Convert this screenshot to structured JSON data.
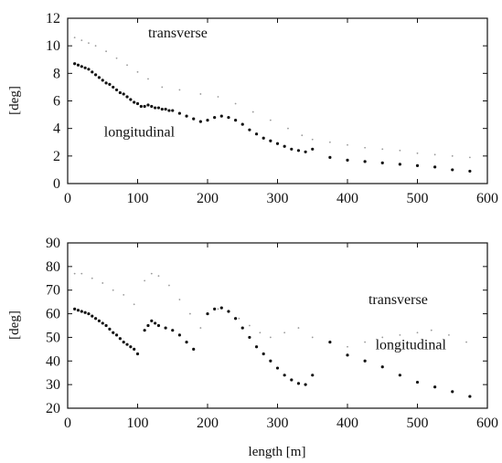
{
  "chart_data": [
    {
      "type": "scatter",
      "xlim": [
        0,
        600
      ],
      "ylim": [
        0,
        12
      ],
      "xticks": [
        0,
        100,
        200,
        300,
        400,
        500,
        600
      ],
      "yticks": [
        0,
        2,
        4,
        6,
        8,
        10,
        12
      ],
      "xlabel": "",
      "ylabel": "[deg]",
      "grid": false,
      "annotations": [
        {
          "text": "transverse",
          "x": 115,
          "y": 10.6
        },
        {
          "text": "longitudinal",
          "x": 52,
          "y": 3.4
        }
      ],
      "series": [
        {
          "name": "transverse",
          "marker": "faint",
          "x": [
            10,
            20,
            30,
            40,
            55,
            70,
            85,
            100,
            115,
            135,
            160,
            190,
            215,
            240,
            265,
            290,
            315,
            335,
            350,
            375,
            400,
            425,
            450,
            475,
            500,
            525,
            550,
            575
          ],
          "y": [
            10.6,
            10.4,
            10.2,
            10.0,
            9.6,
            9.1,
            8.6,
            8.1,
            7.6,
            7.0,
            6.8,
            6.5,
            6.3,
            5.8,
            5.2,
            4.6,
            4.0,
            3.5,
            3.2,
            3.0,
            2.8,
            2.6,
            2.5,
            2.4,
            2.2,
            2.1,
            2.0,
            1.9
          ]
        },
        {
          "name": "longitudinal",
          "marker": "dot",
          "x": [
            10,
            15,
            20,
            25,
            30,
            35,
            40,
            45,
            50,
            55,
            60,
            65,
            70,
            75,
            80,
            85,
            90,
            95,
            100,
            105,
            110,
            115,
            120,
            125,
            130,
            135,
            140,
            145,
            150,
            160,
            170,
            180,
            190,
            200,
            210,
            220,
            230,
            240,
            250,
            260,
            270,
            280,
            290,
            300,
            310,
            320,
            330,
            340,
            350,
            375,
            400,
            425,
            450,
            475,
            500,
            525,
            550,
            575
          ],
          "y": [
            8.7,
            8.6,
            8.5,
            8.4,
            8.3,
            8.1,
            7.9,
            7.7,
            7.5,
            7.3,
            7.2,
            7.0,
            6.8,
            6.6,
            6.5,
            6.3,
            6.1,
            5.9,
            5.8,
            5.6,
            5.6,
            5.7,
            5.6,
            5.5,
            5.5,
            5.4,
            5.4,
            5.3,
            5.3,
            5.1,
            4.9,
            4.7,
            4.5,
            4.6,
            4.8,
            4.9,
            4.8,
            4.6,
            4.3,
            3.9,
            3.6,
            3.3,
            3.1,
            2.9,
            2.7,
            2.5,
            2.4,
            2.3,
            2.5,
            1.9,
            1.7,
            1.6,
            1.5,
            1.4,
            1.3,
            1.2,
            1.0,
            0.9
          ]
        }
      ]
    },
    {
      "type": "scatter",
      "xlim": [
        0,
        600
      ],
      "ylim": [
        20,
        90
      ],
      "xticks": [
        0,
        100,
        200,
        300,
        400,
        500,
        600
      ],
      "yticks": [
        20,
        30,
        40,
        50,
        60,
        70,
        80,
        90
      ],
      "xlabel": "length [m]",
      "ylabel": "[deg]",
      "grid": false,
      "annotations": [
        {
          "text": "transverse",
          "x": 430,
          "y": 64
        },
        {
          "text": "longitudinal",
          "x": 440,
          "y": 45
        }
      ],
      "series": [
        {
          "name": "transverse",
          "marker": "faint",
          "x": [
            10,
            20,
            35,
            50,
            65,
            80,
            95,
            110,
            120,
            130,
            145,
            160,
            175,
            190,
            200,
            215,
            230,
            245,
            260,
            275,
            290,
            310,
            330,
            350,
            375,
            400,
            425,
            450,
            475,
            500,
            520,
            545,
            570
          ],
          "y": [
            77,
            77,
            75,
            73,
            70,
            68,
            64,
            74,
            77,
            76,
            72,
            66,
            60,
            54,
            60,
            62,
            61,
            58,
            55,
            52,
            50,
            52,
            54,
            50,
            48,
            46,
            48,
            50,
            51,
            52,
            53,
            51,
            48
          ]
        },
        {
          "name": "longitudinal",
          "marker": "dot",
          "x": [
            10,
            15,
            20,
            25,
            30,
            35,
            40,
            45,
            50,
            55,
            60,
            65,
            70,
            75,
            80,
            85,
            90,
            95,
            100,
            110,
            115,
            120,
            125,
            130,
            140,
            150,
            160,
            170,
            180,
            200,
            210,
            220,
            230,
            240,
            250,
            260,
            270,
            280,
            290,
            300,
            310,
            320,
            330,
            340,
            350,
            375,
            400,
            425,
            450,
            475,
            500,
            525,
            550,
            575
          ],
          "y": [
            62,
            61.5,
            61,
            60.5,
            60,
            59,
            58,
            57,
            56,
            55,
            53.5,
            52,
            51,
            49.5,
            48,
            47,
            46,
            45,
            43,
            53,
            55,
            57,
            56,
            55,
            54,
            53,
            51,
            48,
            45,
            60,
            62,
            62.5,
            61,
            58,
            54,
            50,
            46,
            43,
            40,
            37,
            34,
            32,
            30.5,
            30,
            34,
            48,
            42.5,
            40,
            37.5,
            34,
            31,
            29,
            27,
            25
          ]
        }
      ]
    }
  ]
}
